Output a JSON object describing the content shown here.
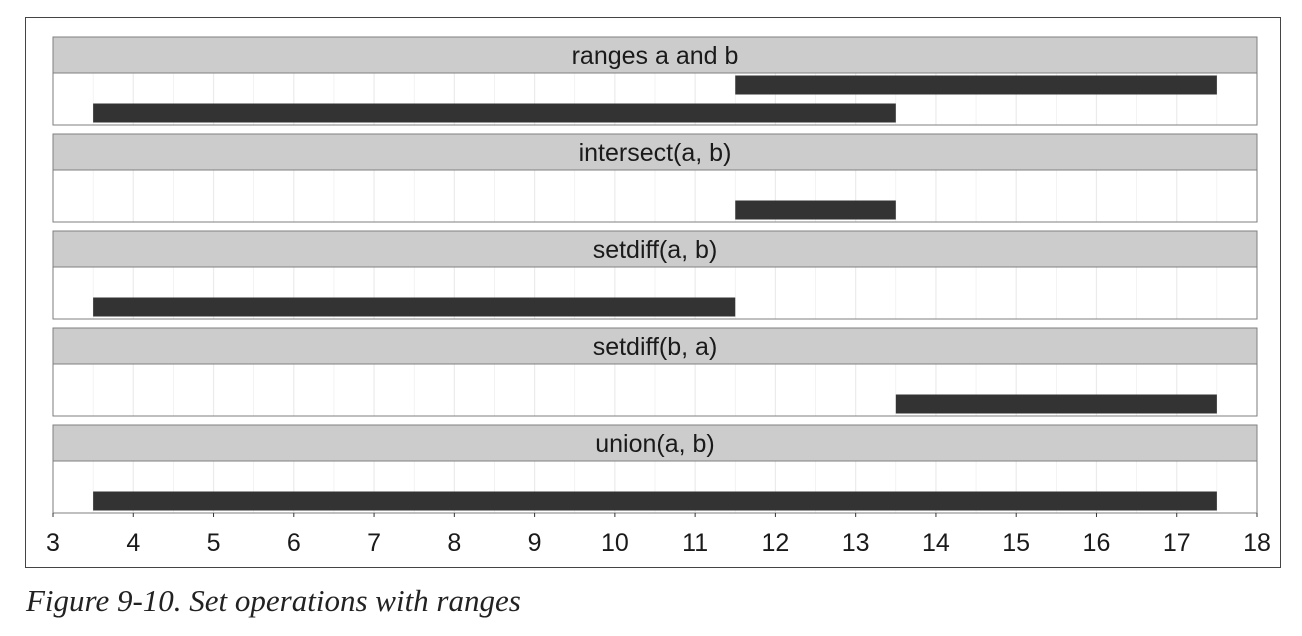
{
  "caption": "Figure 9-10. Set operations with ranges",
  "colors": {
    "bar": "#333333",
    "strip": "#cccccc",
    "grid": "#ebebeb",
    "border": "#7f7f7f"
  },
  "chart_data": {
    "type": "bar",
    "orientation": "horizontal-segments",
    "xlim": [
      3,
      18
    ],
    "x_ticks": [
      3,
      4,
      5,
      6,
      7,
      8,
      9,
      10,
      11,
      12,
      13,
      14,
      15,
      16,
      17,
      18
    ],
    "x_tick_labels": [
      "3",
      "4",
      "5",
      "6",
      "7",
      "8",
      "9",
      "10",
      "11",
      "12",
      "13",
      "14",
      "15",
      "16",
      "17",
      "18"
    ],
    "grid": true,
    "panels": [
      {
        "title": "ranges a and b",
        "segments": [
          {
            "start": 11.5,
            "end": 17.5,
            "row": 2
          },
          {
            "start": 3.5,
            "end": 13.5,
            "row": 1
          }
        ]
      },
      {
        "title": "intersect(a, b)",
        "segments": [
          {
            "start": 11.5,
            "end": 13.5,
            "row": 1
          }
        ]
      },
      {
        "title": "setdiff(a, b)",
        "segments": [
          {
            "start": 3.5,
            "end": 11.5,
            "row": 1
          }
        ]
      },
      {
        "title": "setdiff(b, a)",
        "segments": [
          {
            "start": 13.5,
            "end": 17.5,
            "row": 1
          }
        ]
      },
      {
        "title": "union(a, b)",
        "segments": [
          {
            "start": 3.5,
            "end": 17.5,
            "row": 1
          }
        ]
      }
    ]
  }
}
